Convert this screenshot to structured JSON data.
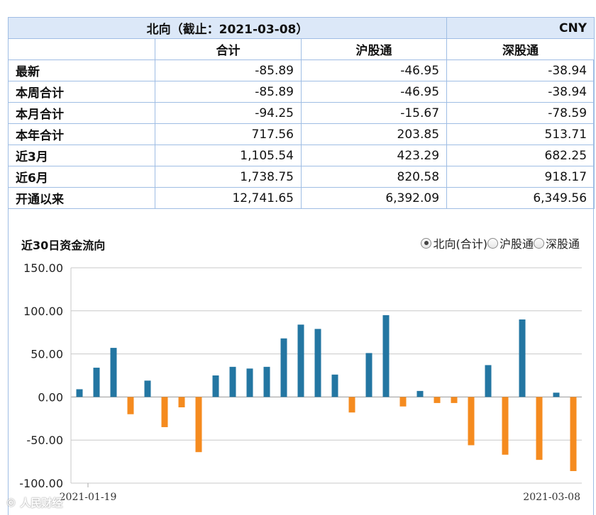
{
  "header": {
    "title": "北向（截止：2021-03-08）",
    "currency": "CNY"
  },
  "columns": [
    "合计",
    "沪股通",
    "深股通"
  ],
  "rows": [
    {
      "label": "最新",
      "values": [
        "-85.89",
        "-46.95",
        "-38.94"
      ]
    },
    {
      "label": "本周合计",
      "values": [
        "-85.89",
        "-46.95",
        "-38.94"
      ]
    },
    {
      "label": "本月合计",
      "values": [
        "-94.25",
        "-15.67",
        "-78.59"
      ]
    },
    {
      "label": "本年合计",
      "values": [
        "717.56",
        "203.85",
        "513.71"
      ]
    },
    {
      "label": "近3月",
      "values": [
        "1,105.54",
        "423.29",
        "682.25"
      ]
    },
    {
      "label": "近6月",
      "values": [
        "1,738.75",
        "820.58",
        "918.17"
      ]
    },
    {
      "label": "开通以来",
      "values": [
        "12,741.65",
        "6,392.09",
        "6,349.56"
      ]
    }
  ],
  "chart": {
    "title": "近30日资金流向",
    "options": [
      {
        "label": "北向(合计)",
        "selected": true
      },
      {
        "label": "沪股通",
        "selected": false
      },
      {
        "label": "深股通",
        "selected": false
      }
    ]
  },
  "colors": {
    "positive": "#2376a2",
    "negative": "#f58b1f",
    "border": "#9fbde4",
    "header_bg": "#dce8f8"
  },
  "watermark": "© 人民财经",
  "chart_data": {
    "type": "bar",
    "title": "近30日资金流向",
    "xlabel": "",
    "ylabel": "",
    "x_start": "2021-01-19",
    "x_end": "2021-03-08",
    "ylim": [
      -100,
      150
    ],
    "yticks": [
      "150.00",
      "100.00",
      "50.00",
      "0.00",
      "-50.00",
      "-100.00"
    ],
    "values": [
      9,
      34,
      57,
      -20,
      19,
      -35,
      -12,
      -64,
      25,
      35,
      33,
      35,
      68,
      84,
      79,
      26,
      -18,
      51,
      95,
      -11,
      7,
      -7,
      -7,
      -56,
      37,
      -67,
      90,
      -73,
      5,
      -86
    ],
    "grid": true,
    "legend": "none"
  }
}
